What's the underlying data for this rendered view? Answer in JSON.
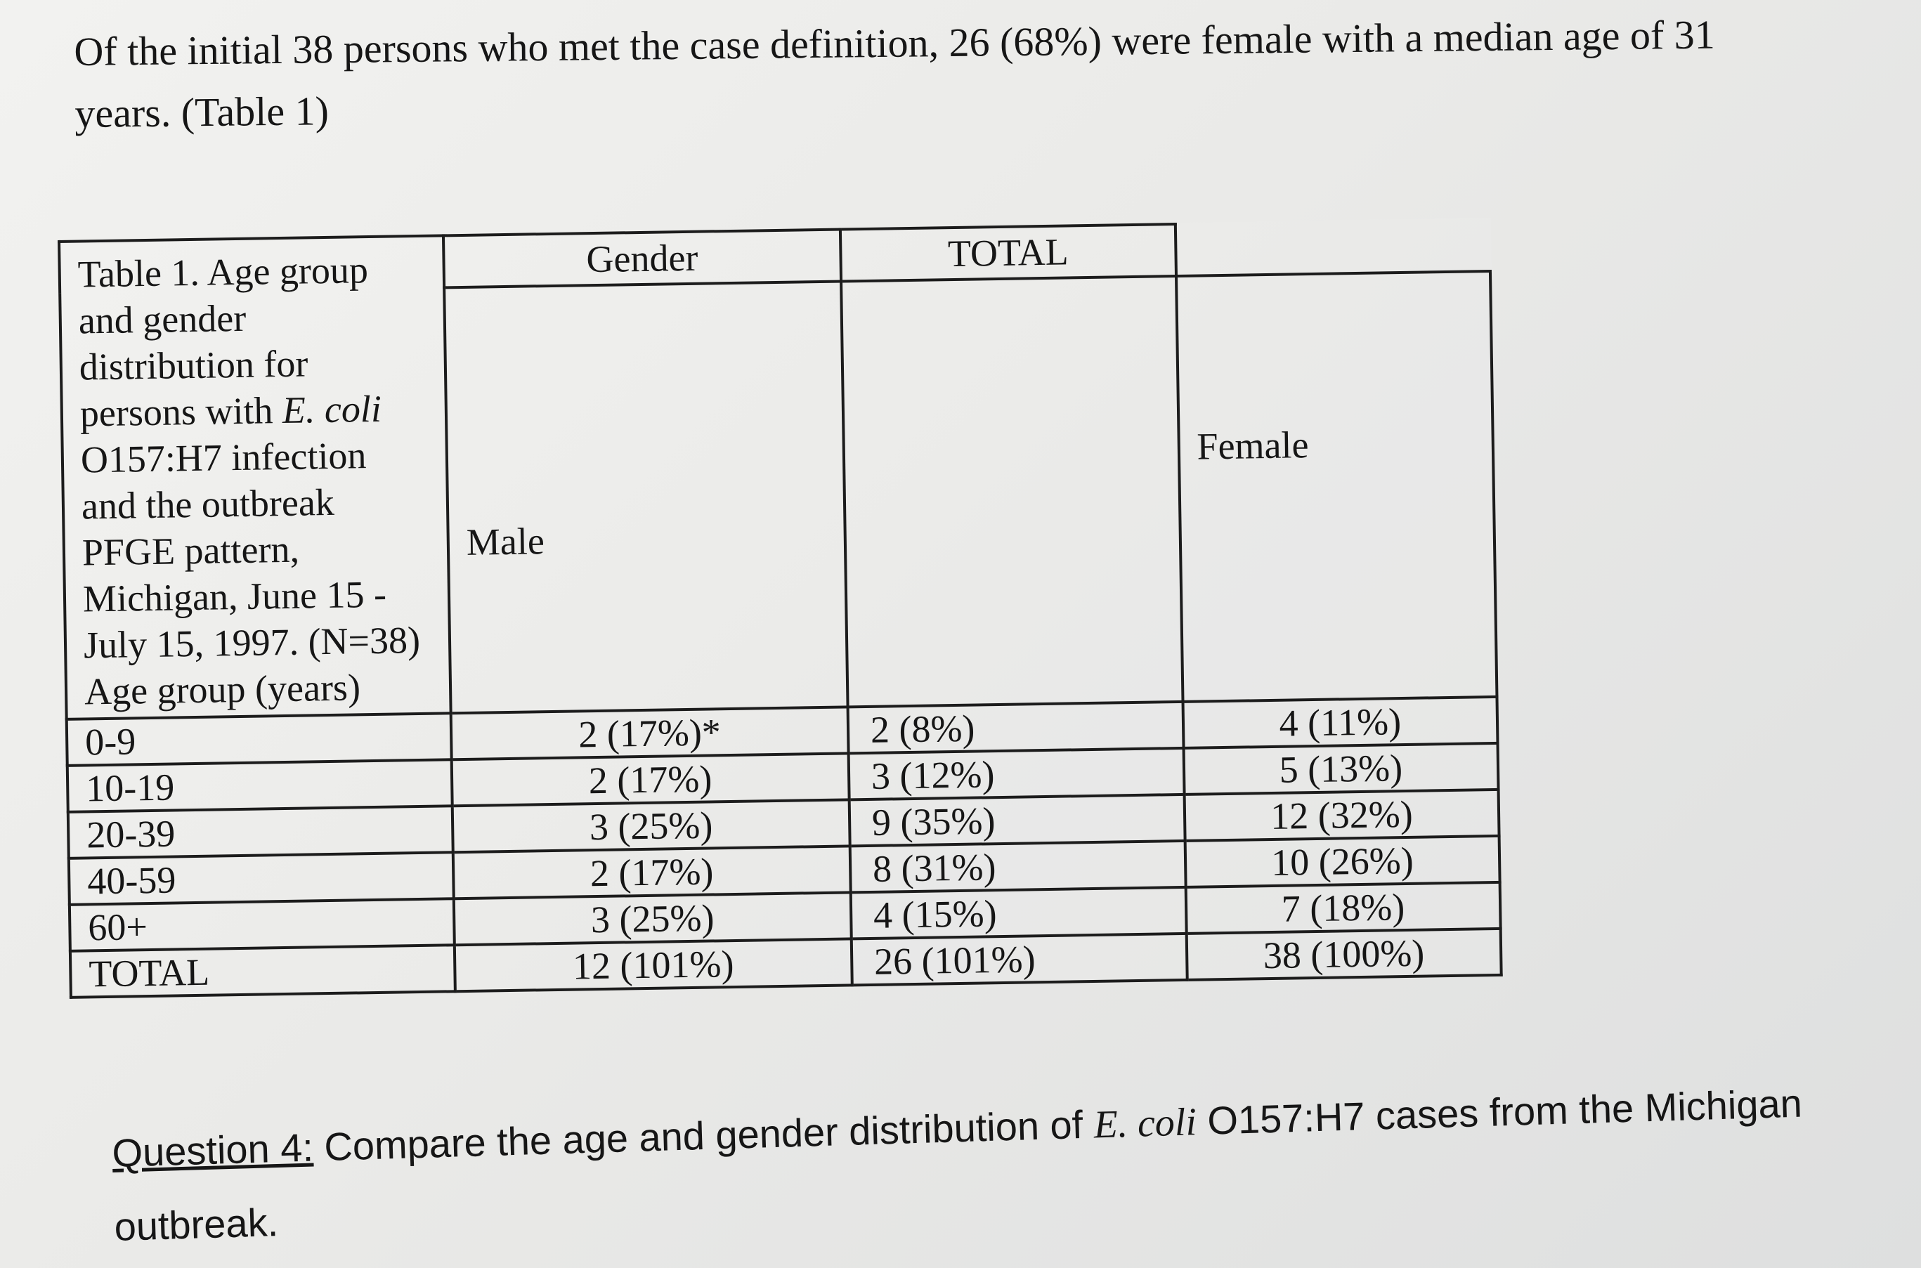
{
  "intro": {
    "line1": "Of the initial 38 persons who met the case definition, 26 (68%) were female with a median age of 31",
    "line2": "years. (Table 1)"
  },
  "table": {
    "caption_before_italic": "Table 1. Age group and gender distribution for persons with ",
    "caption_italic_1": "E.",
    "caption_italic_2": "coli",
    "caption_after_italic": " O157:H7 infection and the outbreak PFGE pattern, Michigan, June 15 - July 15, 1997. (N=38) Age group (years)",
    "header_gender": "Gender",
    "header_total": "TOTAL",
    "label_male": "Male",
    "label_female": "Female",
    "rows": [
      {
        "age": "0-9",
        "male": "2 (17%)*",
        "female": "2 (8%)",
        "total": "4 (11%)"
      },
      {
        "age": "10-19",
        "male": "2 (17%)",
        "female": "3 (12%)",
        "total": "5 (13%)"
      },
      {
        "age": "20-39",
        "male": "3 (25%)",
        "female": "9 (35%)",
        "total": "12 (32%)"
      },
      {
        "age": "40-59",
        "male": "2 (17%)",
        "female": "8 (31%)",
        "total": "10 (26%)"
      },
      {
        "age": "60+",
        "male": "3 (25%)",
        "female": "4 (15%)",
        "total": "7 (18%)"
      },
      {
        "age": "TOTAL",
        "male": "12 (101%)",
        "female": "26 (101%)",
        "total": "38 (100%)"
      }
    ]
  },
  "question": {
    "label": "Question 4:",
    "text_before": " Compare the age and gender distribution of ",
    "species": "E. coli",
    "text_after": " O157:H7 cases from the Michigan",
    "line2": "outbreak."
  }
}
